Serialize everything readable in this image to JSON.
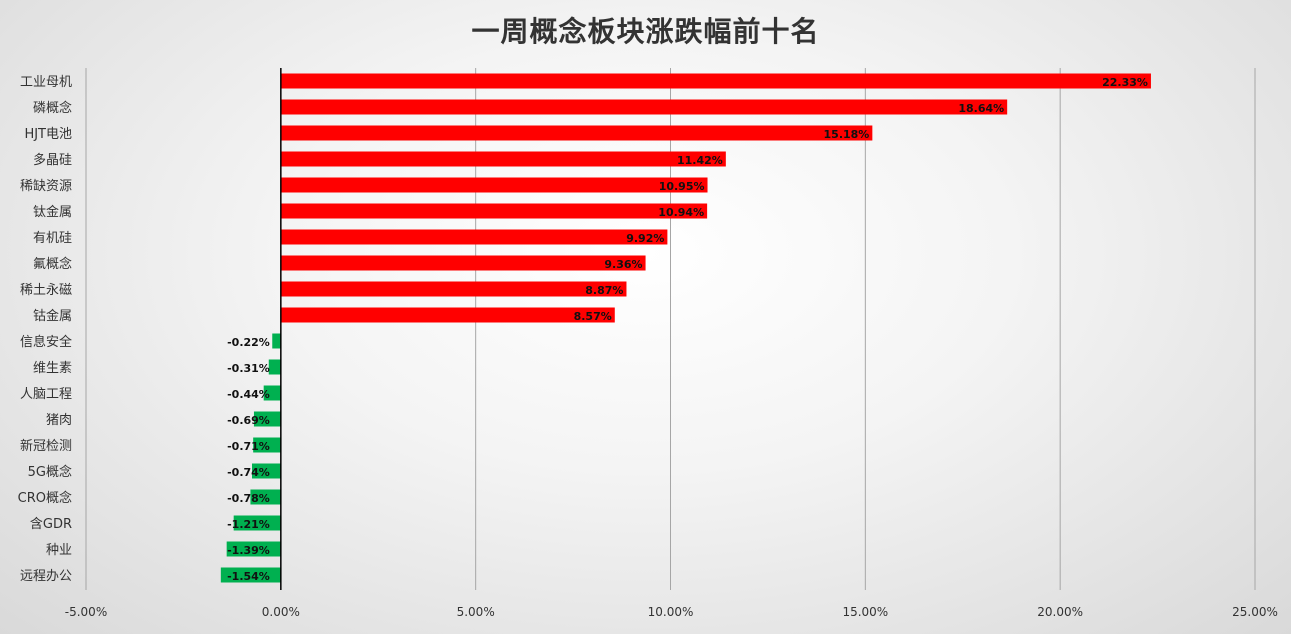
{
  "chart_data": {
    "type": "bar",
    "orientation": "horizontal",
    "title": "一周概念板块涨跌幅前十名",
    "xlabel": "",
    "ylabel": "",
    "categories": [
      "工业母机",
      "磷概念",
      "HJT电池",
      "多晶硅",
      "稀缺资源",
      "钛金属",
      "有机硅",
      "氟概念",
      "稀土永磁",
      "钴金属",
      "信息安全",
      "维生素",
      "人脑工程",
      "猪肉",
      "新冠检测",
      "5G概念",
      "CRO概念",
      "含GDR",
      "种业",
      "远程办公"
    ],
    "values": [
      22.33,
      18.64,
      15.18,
      11.42,
      10.95,
      10.94,
      9.92,
      9.36,
      8.87,
      8.57,
      -0.22,
      -0.31,
      -0.44,
      -0.69,
      -0.71,
      -0.74,
      -0.78,
      -1.21,
      -1.39,
      -1.54
    ],
    "value_labels": [
      "22.33%",
      "18.64%",
      "15.18%",
      "11.42%",
      "10.95%",
      "10.94%",
      "9.92%",
      "9.36%",
      "8.87%",
      "8.57%",
      "-0.22%",
      "-0.31%",
      "-0.44%",
      "-0.69%",
      "-0.71%",
      "-0.74%",
      "-0.78%",
      "-1.21%",
      "-1.39%",
      "-1.54%"
    ],
    "xlim": [
      -5,
      25
    ],
    "xticks": [
      -5,
      0,
      5,
      10,
      15,
      20,
      25
    ],
    "xtick_labels": [
      "-5.00%",
      "0.00%",
      "5.00%",
      "10.00%",
      "15.00%",
      "20.00%",
      "25.00%"
    ],
    "grid": "vertical",
    "legend": "none",
    "colors": {
      "positive": "#ff0000",
      "negative": "#00b050",
      "gridline": "#a6a6a6",
      "axis": "#000000"
    }
  }
}
